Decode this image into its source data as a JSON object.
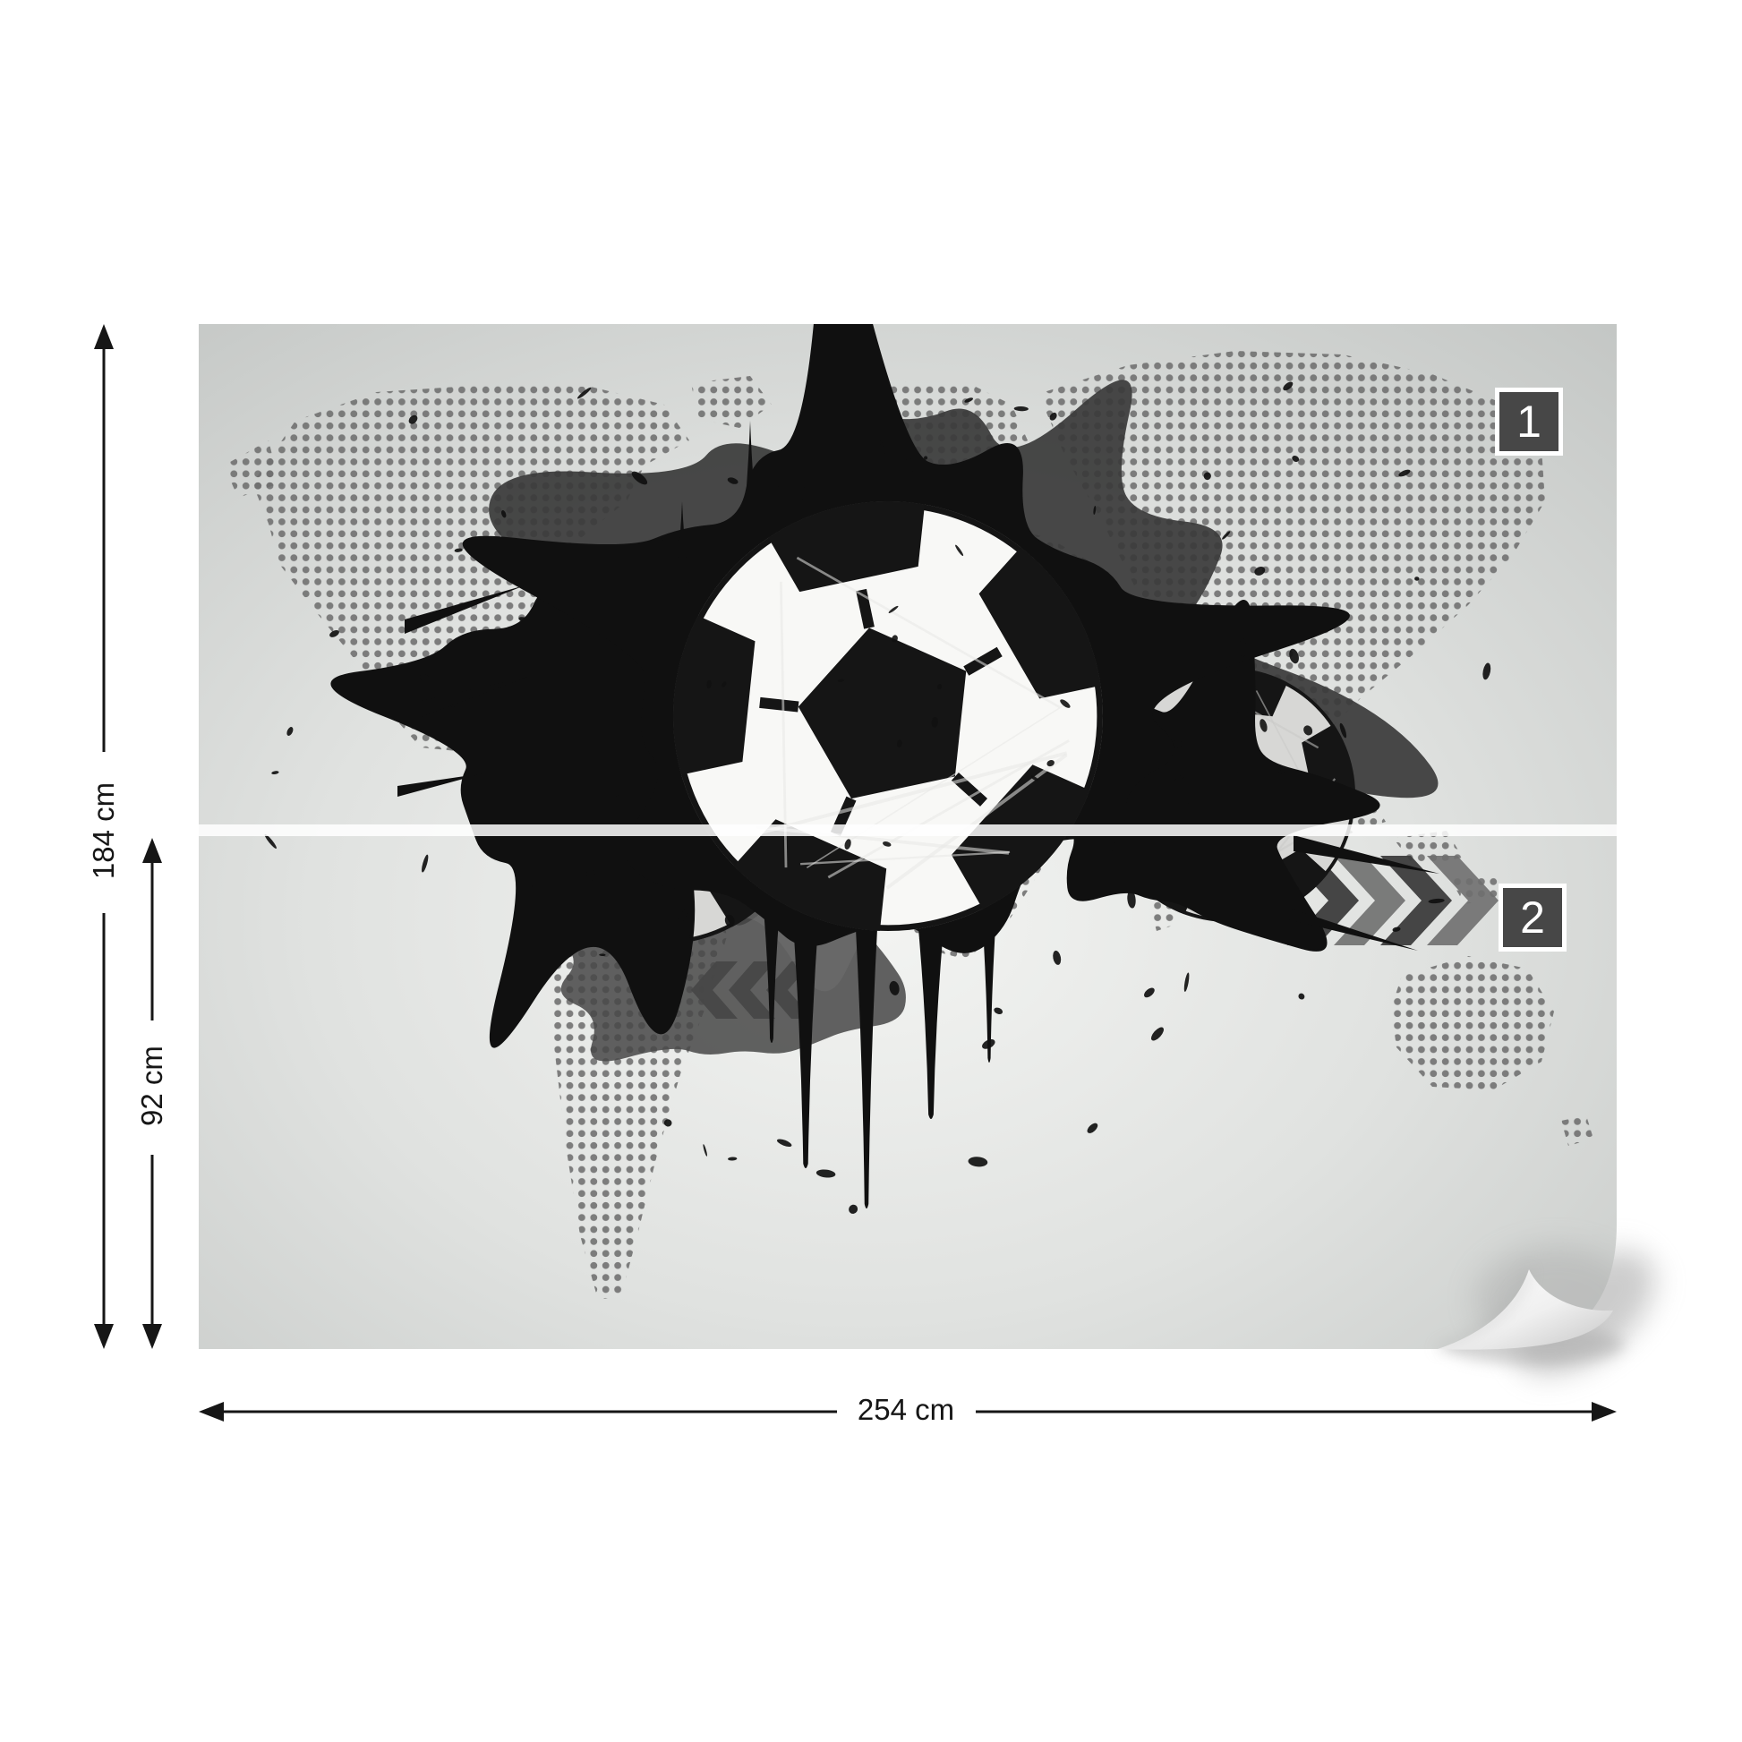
{
  "product": {
    "panels": [
      {
        "number": "1"
      },
      {
        "number": "2"
      }
    ],
    "dimensions": {
      "total_height": "184 cm",
      "panel_height": "92 cm",
      "total_width": "254 cm"
    }
  },
  "artwork": {
    "motif_elements": [
      "football-icon",
      "paint-splatter-icon",
      "dotted-world-map-icon",
      "chevron-arrows-icon",
      "page-curl-icon"
    ]
  },
  "colors": {
    "page_background": "#ffffff",
    "mural_edge_grey": "#c4c7c5",
    "mural_center_light": "#f3f4f2",
    "map_dot_grey": "#6e6e6e",
    "splatter_black": "#101010",
    "splatter_dark_grey": "#3a3a3a",
    "panel_badge_background": "#474747",
    "panel_badge_border": "#ffffff",
    "dimension_line_black": "#161616",
    "panel_divider_white": "#ffffff"
  }
}
